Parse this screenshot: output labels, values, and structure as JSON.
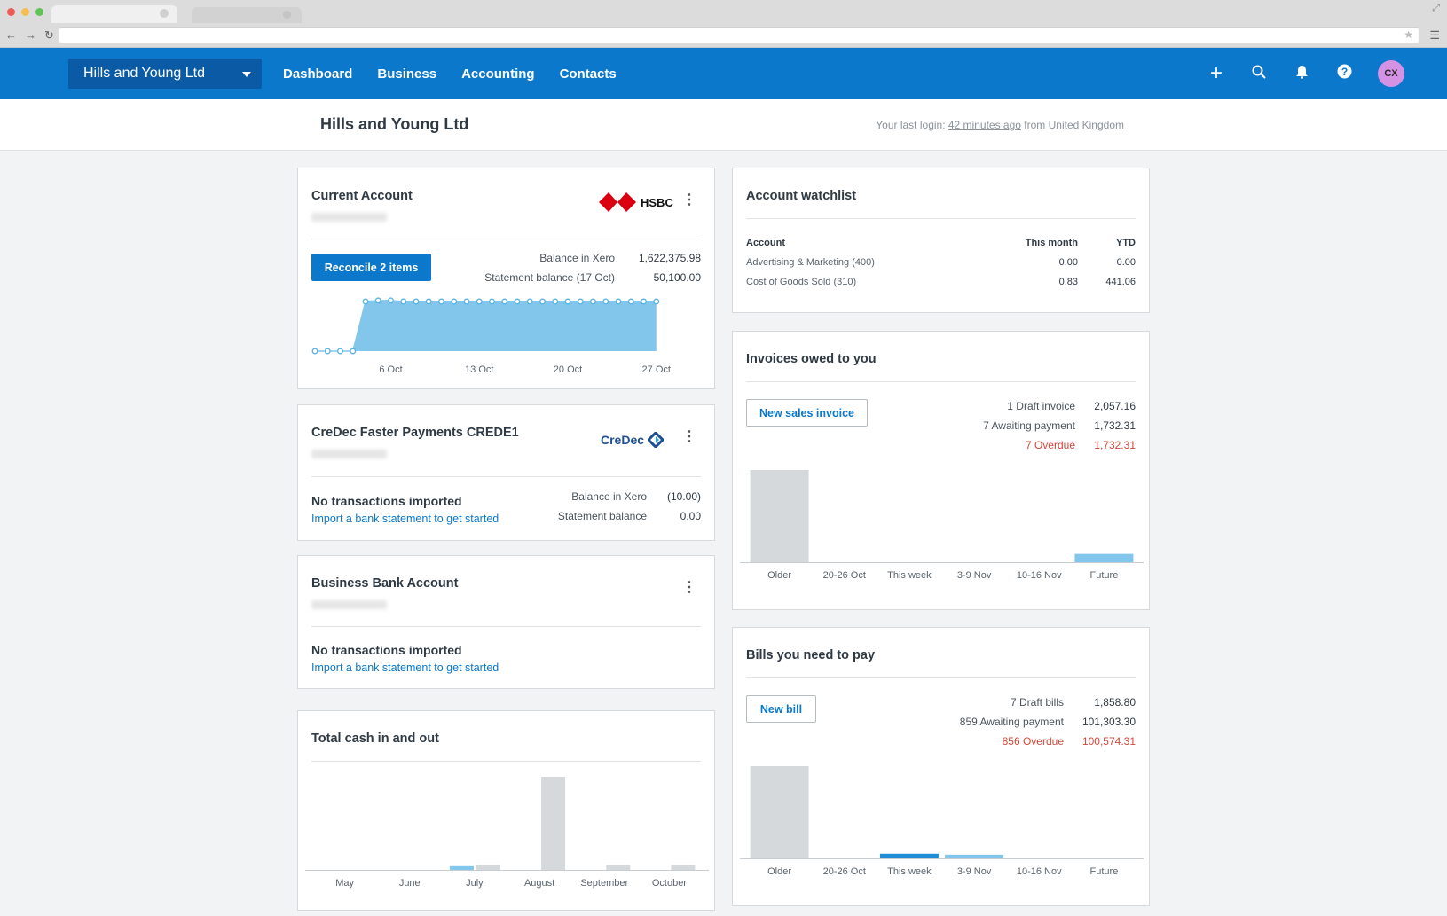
{
  "browser": {
    "traffic_colors": [
      "#ee5b55",
      "#f4bd4f",
      "#5fc454"
    ]
  },
  "header": {
    "org_name": "Hills and Young Ltd",
    "nav": [
      "Dashboard",
      "Business",
      "Accounting",
      "Contacts"
    ],
    "avatar_initials": "CX",
    "avatar_color": "#d592e4",
    "brand_color": "#0b78cb"
  },
  "page": {
    "title": "Hills and Young Ltd",
    "login_prefix": "Your last login: ",
    "login_time": "42 minutes ago",
    "login_suffix": " from United Kingdom"
  },
  "current_account": {
    "title": "Current Account",
    "bank_logo_text": "HSBC",
    "reconcile_label": "Reconcile 2 items",
    "balance_label": "Balance in Xero",
    "balance_value": "1,622,375.98",
    "statement_label": "Statement balance (17 Oct)",
    "statement_value": "50,100.00",
    "chart_data": {
      "type": "area",
      "x_tick_labels": [
        "6 Oct",
        "13 Oct",
        "20 Oct",
        "27 Oct"
      ],
      "points_per_tick_interval": 7,
      "leading_zero_points": 4,
      "values_relative": [
        0,
        0,
        0,
        0,
        1,
        1.02,
        1.02,
        1,
        1,
        1,
        1,
        1,
        1,
        1,
        1,
        1,
        1,
        1,
        1,
        1,
        1,
        1,
        1,
        1,
        1,
        1,
        1,
        1
      ]
    }
  },
  "credec": {
    "title": "CreDec Faster Payments CREDE1",
    "logo_text": "CreDec",
    "status": "No transactions imported",
    "link": "Import a bank statement to get started",
    "balance_label": "Balance in Xero",
    "balance_value": "(10.00)",
    "statement_label": "Statement balance",
    "statement_value": "0.00"
  },
  "business_bank": {
    "title": "Business Bank Account",
    "status": "No transactions imported",
    "link": "Import a bank statement to get started"
  },
  "cash": {
    "title": "Total cash in and out",
    "chart_data": {
      "type": "bar",
      "categories": [
        "May",
        "June",
        "July",
        "August",
        "September",
        "October"
      ],
      "series": [
        {
          "color": "#83c6ec",
          "values": [
            0,
            0,
            0.04,
            0,
            0,
            0
          ]
        },
        {
          "color": "#d6d9dc",
          "values": [
            0,
            0,
            0.05,
            1,
            0.05,
            0.05
          ]
        }
      ]
    }
  },
  "watchlist": {
    "title": "Account watchlist",
    "columns": [
      "Account",
      "This month",
      "YTD"
    ],
    "rows": [
      {
        "account": "Advertising & Marketing (400)",
        "month": "0.00",
        "ytd": "0.00"
      },
      {
        "account": "Cost of Goods Sold (310)",
        "month": "0.83",
        "ytd": "441.06"
      }
    ]
  },
  "invoices": {
    "title": "Invoices owed to you",
    "button": "New sales invoice",
    "stats": [
      {
        "label": "1 Draft invoice",
        "value": "2,057.16",
        "overdue": false
      },
      {
        "label": "7 Awaiting payment",
        "value": "1,732.31",
        "overdue": false
      },
      {
        "label": "7 Overdue",
        "value": "1,732.31",
        "overdue": true
      }
    ],
    "chart_data": {
      "type": "bar",
      "categories": [
        "Older",
        "20-26 Oct",
        "This week",
        "3-9 Nov",
        "10-16 Nov",
        "Future"
      ],
      "values": [
        1,
        0,
        0,
        0,
        0,
        0.09
      ],
      "colors": [
        "#d6d9dc",
        "#d6d9dc",
        "#d6d9dc",
        "#d6d9dc",
        "#d6d9dc",
        "#83c6ec"
      ]
    }
  },
  "bills": {
    "title": "Bills you need to pay",
    "button": "New bill",
    "stats": [
      {
        "label": "7 Draft bills",
        "value": "1,858.80",
        "overdue": false
      },
      {
        "label": "859 Awaiting payment",
        "value": "101,303.30",
        "overdue": false
      },
      {
        "label": "856 Overdue",
        "value": "100,574.31",
        "overdue": true
      }
    ],
    "chart_data": {
      "type": "bar",
      "categories": [
        "Older",
        "20-26 Oct",
        "This week",
        "3-9 Nov",
        "10-16 Nov",
        "Future"
      ],
      "values": [
        1,
        0,
        0.05,
        0.04,
        0,
        0
      ],
      "colors": [
        "#d6d9dc",
        "#d6d9dc",
        "#1d8ed6",
        "#83c6ec",
        "#d6d9dc",
        "#d6d9dc"
      ]
    }
  }
}
